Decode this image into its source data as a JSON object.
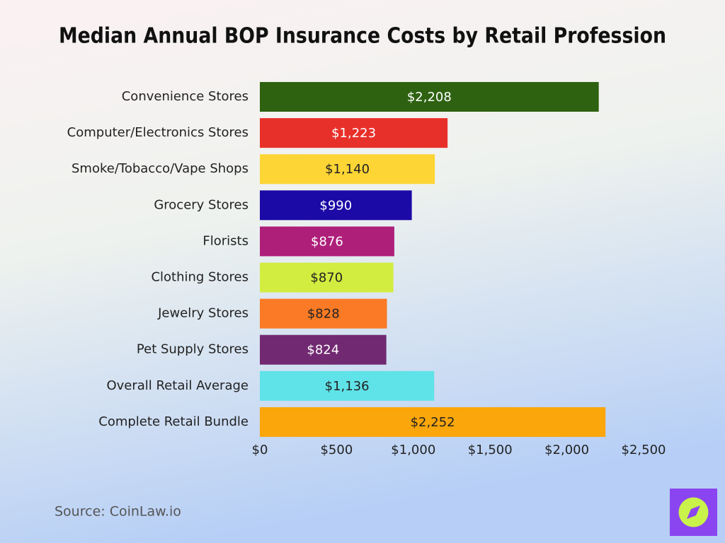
{
  "chart_data": {
    "type": "bar",
    "orientation": "horizontal",
    "title": "Median Annual BOP Insurance Costs by Retail Profession",
    "categories": [
      "Convenience Stores",
      "Computer/Electronics Stores",
      "Smoke/Tobacco/Vape Shops",
      "Grocery Stores",
      "Florists",
      "Clothing Stores",
      "Jewelry Stores",
      "Pet Supply Stores",
      "Overall Retail Average",
      "Complete Retail Bundle"
    ],
    "values": [
      2208,
      1223,
      1140,
      990,
      876,
      870,
      828,
      824,
      1136,
      2252
    ],
    "value_labels": [
      "$2,208",
      "$1,223",
      "$1,140",
      "$990",
      "$876",
      "$870",
      "$828",
      "$824",
      "$1,136",
      "$2,252"
    ],
    "colors": [
      "#2e6211",
      "#e8302a",
      "#fdd535",
      "#1b0aa6",
      "#ae1f7a",
      "#d3ec40",
      "#fb7a25",
      "#712a71",
      "#5fe2e8",
      "#fba60b"
    ],
    "xlim": [
      0,
      2500
    ],
    "xticks": [
      {
        "value": 0,
        "label": "$0"
      },
      {
        "value": 500,
        "label": "$500"
      },
      {
        "value": 1000,
        "label": "$1,000"
      },
      {
        "value": 1500,
        "label": "$1,500"
      },
      {
        "value": 2000,
        "label": "$2,000"
      },
      {
        "value": 2500,
        "label": "$2,500"
      }
    ],
    "source": "Source: CoinLaw.io"
  }
}
